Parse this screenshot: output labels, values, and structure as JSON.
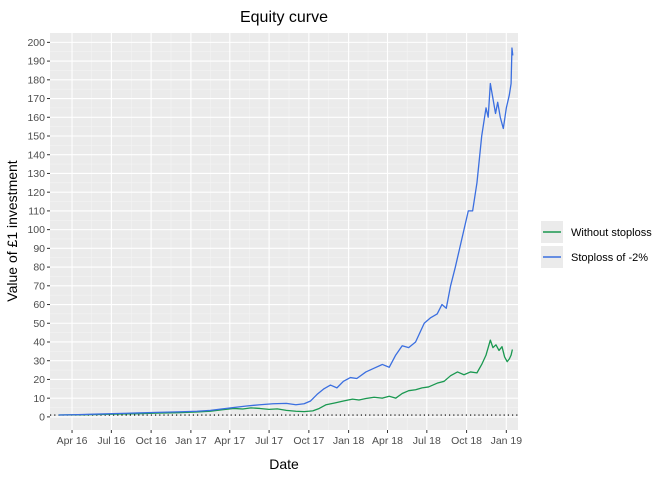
{
  "chart_data": {
    "type": "line",
    "title": "Equity curve",
    "xlabel": "Date",
    "ylabel": "Value of £1 investment",
    "x_ticks": [
      "Apr 16",
      "Jul 16",
      "Oct 16",
      "Jan 17",
      "Apr 17",
      "Jul 17",
      "Oct 17",
      "Jan 18",
      "Apr 18",
      "Jul 18",
      "Oct 18",
      "Jan 19"
    ],
    "x_tick_dates": [
      "2016-04-01",
      "2016-07-01",
      "2016-10-01",
      "2017-01-01",
      "2017-04-01",
      "2017-07-01",
      "2017-10-01",
      "2018-01-01",
      "2018-04-01",
      "2018-07-01",
      "2018-10-01",
      "2019-01-01"
    ],
    "xlim": [
      "2016-02-10",
      "2019-01-28"
    ],
    "y_ticks": [
      0,
      10,
      20,
      30,
      40,
      50,
      60,
      70,
      80,
      90,
      100,
      110,
      120,
      130,
      140,
      150,
      160,
      170,
      180,
      190,
      200
    ],
    "ylim": [
      -7,
      205
    ],
    "reference_line": {
      "y": 1,
      "style": "dotted"
    },
    "grid": true,
    "legend_position": "right",
    "series": [
      {
        "name": "Without stoploss",
        "color": "#1a9850",
        "points": [
          [
            "2016-03-01",
            1.0
          ],
          [
            "2016-04-15",
            1.1
          ],
          [
            "2016-06-01",
            1.3
          ],
          [
            "2016-07-15",
            1.5
          ],
          [
            "2016-09-01",
            1.7
          ],
          [
            "2016-10-15",
            2.0
          ],
          [
            "2016-12-01",
            2.2
          ],
          [
            "2017-01-15",
            2.6
          ],
          [
            "2017-02-15",
            3.0
          ],
          [
            "2017-03-15",
            3.8
          ],
          [
            "2017-04-10",
            4.5
          ],
          [
            "2017-05-01",
            4.2
          ],
          [
            "2017-05-20",
            4.8
          ],
          [
            "2017-06-10",
            4.5
          ],
          [
            "2017-07-01",
            4.0
          ],
          [
            "2017-07-20",
            4.3
          ],
          [
            "2017-08-10",
            3.5
          ],
          [
            "2017-09-01",
            3.0
          ],
          [
            "2017-09-20",
            2.8
          ],
          [
            "2017-10-10",
            3.2
          ],
          [
            "2017-10-25",
            4.5
          ],
          [
            "2017-11-10",
            6.5
          ],
          [
            "2017-12-01",
            7.5
          ],
          [
            "2017-12-20",
            8.5
          ],
          [
            "2018-01-10",
            9.5
          ],
          [
            "2018-01-25",
            9.0
          ],
          [
            "2018-02-10",
            9.8
          ],
          [
            "2018-03-01",
            10.5
          ],
          [
            "2018-03-20",
            10.0
          ],
          [
            "2018-04-05",
            11.0
          ],
          [
            "2018-04-20",
            10.0
          ],
          [
            "2018-05-05",
            12.5
          ],
          [
            "2018-05-20",
            14.0
          ],
          [
            "2018-06-05",
            14.5
          ],
          [
            "2018-06-20",
            15.5
          ],
          [
            "2018-07-05",
            16.0
          ],
          [
            "2018-07-25",
            18.0
          ],
          [
            "2018-08-10",
            19.0
          ],
          [
            "2018-08-25",
            22.0
          ],
          [
            "2018-09-10",
            24.0
          ],
          [
            "2018-09-25",
            22.5
          ],
          [
            "2018-10-10",
            24.0
          ],
          [
            "2018-10-25",
            23.5
          ],
          [
            "2018-11-05",
            28.0
          ],
          [
            "2018-11-15",
            33.0
          ],
          [
            "2018-11-25",
            41.0
          ],
          [
            "2018-12-01",
            37.0
          ],
          [
            "2018-12-08",
            38.5
          ],
          [
            "2018-12-15",
            35.5
          ],
          [
            "2018-12-22",
            37.5
          ],
          [
            "2018-12-28",
            32.0
          ],
          [
            "2019-01-03",
            29.5
          ],
          [
            "2019-01-08",
            31.0
          ],
          [
            "2019-01-12",
            33.0
          ],
          [
            "2019-01-15",
            36.0
          ]
        ]
      },
      {
        "name": "Stoploss of -2%",
        "color": "#3b6fe0",
        "points": [
          [
            "2016-03-01",
            1.0
          ],
          [
            "2016-04-15",
            1.2
          ],
          [
            "2016-06-01",
            1.5
          ],
          [
            "2016-07-15",
            1.8
          ],
          [
            "2016-09-01",
            2.1
          ],
          [
            "2016-10-15",
            2.4
          ],
          [
            "2016-12-01",
            2.7
          ],
          [
            "2017-01-15",
            3.0
          ],
          [
            "2017-02-15",
            3.5
          ],
          [
            "2017-03-15",
            4.3
          ],
          [
            "2017-04-10",
            5.0
          ],
          [
            "2017-05-10",
            5.8
          ],
          [
            "2017-06-10",
            6.5
          ],
          [
            "2017-07-10",
            7.0
          ],
          [
            "2017-08-10",
            7.2
          ],
          [
            "2017-09-01",
            6.5
          ],
          [
            "2017-09-20",
            7.0
          ],
          [
            "2017-10-05",
            8.5
          ],
          [
            "2017-10-20",
            12.0
          ],
          [
            "2017-11-05",
            15.0
          ],
          [
            "2017-11-20",
            17.0
          ],
          [
            "2017-12-05",
            15.5
          ],
          [
            "2017-12-20",
            19.0
          ],
          [
            "2018-01-05",
            21.0
          ],
          [
            "2018-01-20",
            20.5
          ],
          [
            "2018-02-10",
            24.0
          ],
          [
            "2018-03-01",
            26.0
          ],
          [
            "2018-03-20",
            28.0
          ],
          [
            "2018-04-05",
            26.5
          ],
          [
            "2018-04-20",
            33.0
          ],
          [
            "2018-05-05",
            38.0
          ],
          [
            "2018-05-20",
            37.0
          ],
          [
            "2018-06-05",
            40.0
          ],
          [
            "2018-06-25",
            50.0
          ],
          [
            "2018-07-10",
            53.0
          ],
          [
            "2018-07-25",
            55.0
          ],
          [
            "2018-08-05",
            60.0
          ],
          [
            "2018-08-15",
            58.0
          ],
          [
            "2018-08-25",
            70.0
          ],
          [
            "2018-09-05",
            80.0
          ],
          [
            "2018-09-15",
            90.0
          ],
          [
            "2018-09-25",
            100.0
          ],
          [
            "2018-10-05",
            110.0
          ],
          [
            "2018-10-15",
            110.0
          ],
          [
            "2018-10-25",
            125.0
          ],
          [
            "2018-11-05",
            150.0
          ],
          [
            "2018-11-15",
            165.0
          ],
          [
            "2018-11-20",
            160.0
          ],
          [
            "2018-11-25",
            178.0
          ],
          [
            "2018-12-01",
            170.0
          ],
          [
            "2018-12-07",
            162.0
          ],
          [
            "2018-12-12",
            168.0
          ],
          [
            "2018-12-18",
            160.0
          ],
          [
            "2018-12-25",
            154.0
          ],
          [
            "2019-01-01",
            165.0
          ],
          [
            "2019-01-08",
            172.0
          ],
          [
            "2019-01-12",
            178.0
          ],
          [
            "2019-01-14",
            197.0
          ],
          [
            "2019-01-16",
            193.0
          ]
        ]
      }
    ]
  }
}
